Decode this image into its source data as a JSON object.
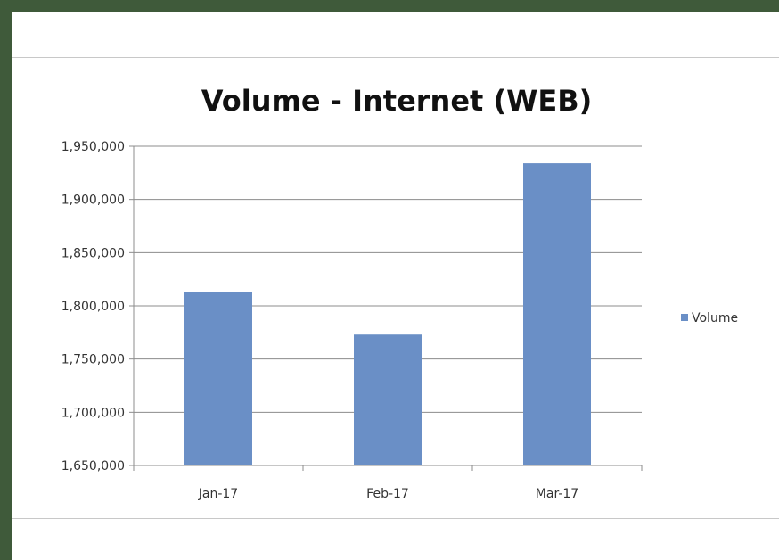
{
  "colors": {
    "frame": "#3f5a3a",
    "bar": "#6a8fc6",
    "gridline": "#8c8c8c"
  },
  "chart_data": {
    "type": "bar",
    "title": "Volume - Internet (WEB)",
    "categories": [
      "Jan-17",
      "Feb-17",
      "Mar-17"
    ],
    "series": [
      {
        "name": "Volume",
        "values": [
          1813000,
          1773000,
          1934000
        ]
      }
    ],
    "ylim": [
      1650000,
      1950000
    ],
    "yticks": [
      1650000,
      1700000,
      1750000,
      1800000,
      1850000,
      1900000,
      1950000
    ],
    "ytick_labels": [
      "1,650,000",
      "1,700,000",
      "1,750,000",
      "1,800,000",
      "1,850,000",
      "1,900,000",
      "1,950,000"
    ],
    "grid": true,
    "legend_position": "right"
  }
}
